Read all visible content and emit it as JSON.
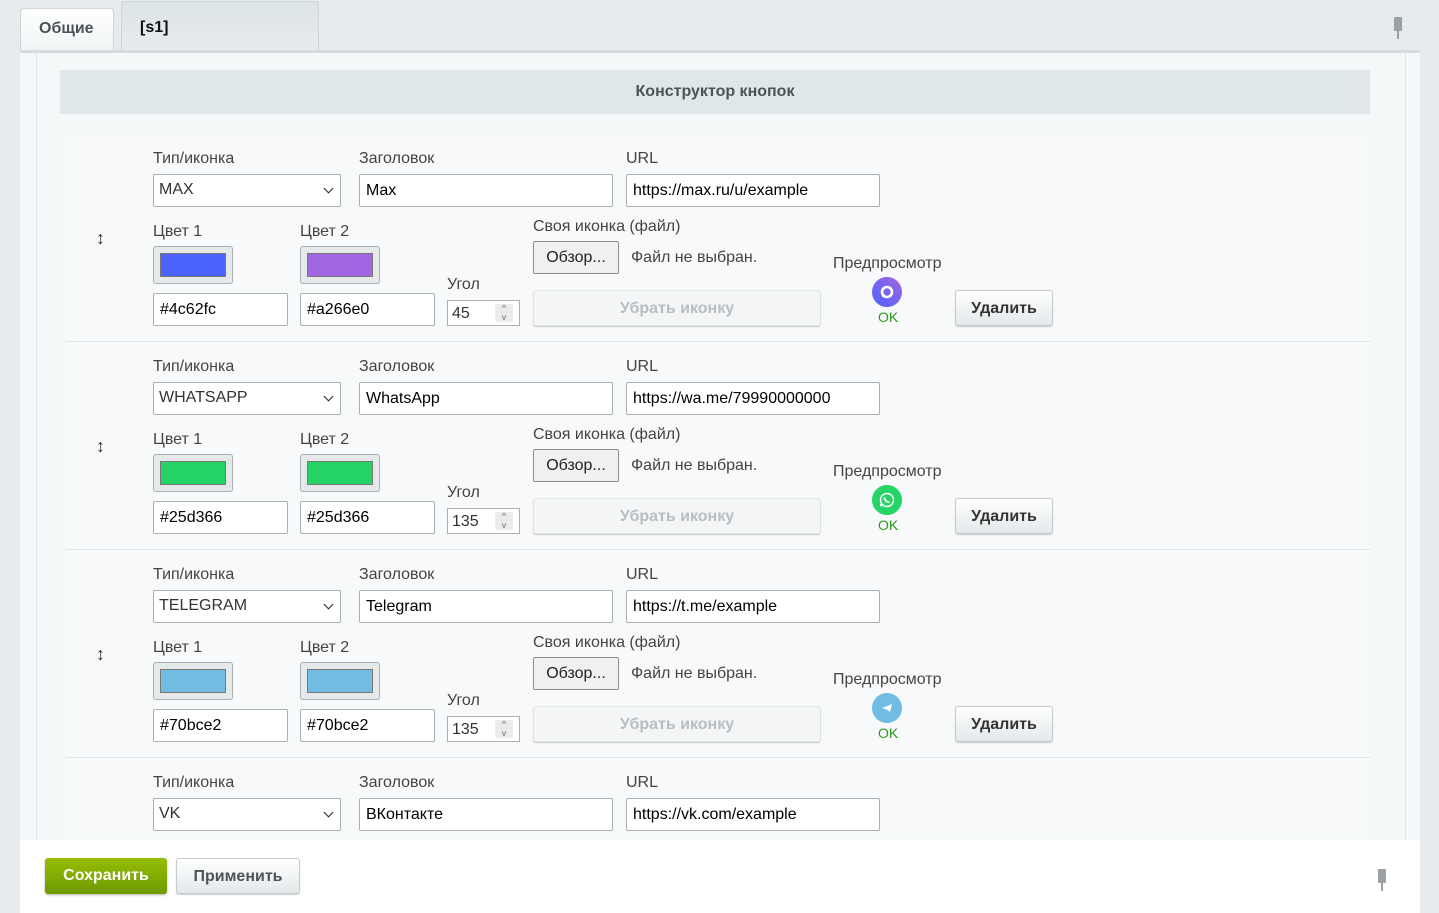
{
  "tabs": [
    {
      "label": "Общие"
    },
    {
      "label": "[s1]"
    }
  ],
  "section_title": "Конструктор кнопок",
  "labels": {
    "type": "Тип/иконка",
    "title": "Заголовок",
    "url": "URL",
    "color1": "Цвет 1",
    "color2": "Цвет 2",
    "angle": "Угол",
    "custom_icon": "Своя иконка (файл)",
    "browse": "Обзор...",
    "no_file": "Файл не выбран.",
    "preview": "Предпросмотр",
    "remove_icon": "Убрать иконку",
    "delete": "Удалить",
    "ok": "OK",
    "drag": "↕"
  },
  "rows": [
    {
      "type": "MAX",
      "title": "Max",
      "url": "https://max.ru/u/example",
      "color1": "#4c62fc",
      "color2": "#a266e0",
      "angle": "45",
      "icon": "max-icon"
    },
    {
      "type": "WHATSAPP",
      "title": "WhatsApp",
      "url": "https://wa.me/79990000000",
      "color1": "#25d366",
      "color2": "#25d366",
      "angle": "135",
      "icon": "whatsapp-icon"
    },
    {
      "type": "TELEGRAM",
      "title": "Telegram",
      "url": "https://t.me/example",
      "color1": "#70bce2",
      "color2": "#70bce2",
      "angle": "135",
      "icon": "telegram-icon"
    },
    {
      "type": "VK",
      "title": "ВКонтакте",
      "url": "https://vk.com/example"
    }
  ],
  "footer": {
    "save": "Сохранить",
    "apply": "Применить"
  }
}
